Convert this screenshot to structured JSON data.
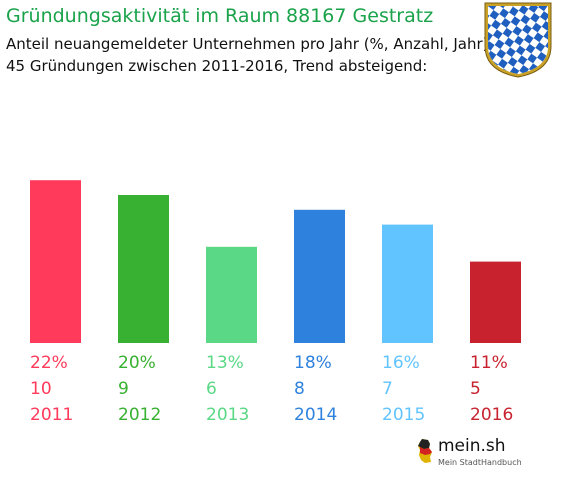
{
  "header": {
    "title": "Gründungsaktivität im Raum 88167 Gestratz",
    "subtitle_line1": "Anteil neuangemeldeter Unternehmen pro Jahr (%, Anzahl, Jahr)",
    "subtitle_line2": "45 Gründungen zwischen 2011-2016, Trend absteigend:"
  },
  "crest": {
    "icon": "bavarian-lozenge-crest-icon",
    "colors": [
      "#1f5fbf",
      "#ffffff"
    ]
  },
  "brand": {
    "name": "mein.sh",
    "tagline": "Mein StadtHandbuch",
    "icon": "germany-map-logo-icon"
  },
  "chart_data": {
    "type": "bar",
    "categories": [
      "2011",
      "2012",
      "2013",
      "2014",
      "2015",
      "2016"
    ],
    "values": [
      22,
      20,
      13,
      18,
      16,
      11
    ],
    "counts": [
      10,
      9,
      6,
      8,
      7,
      5
    ],
    "percent_labels": [
      "22%",
      "20%",
      "13%",
      "18%",
      "16%",
      "11%"
    ],
    "count_labels": [
      "10",
      "9",
      "6",
      "8",
      "7",
      "5"
    ],
    "colors": [
      "#ff3a5a",
      "#38b032",
      "#5ad885",
      "#2e82dd",
      "#62c4ff",
      "#c8222f"
    ],
    "unit": "%",
    "grid": false,
    "legend": "none"
  }
}
